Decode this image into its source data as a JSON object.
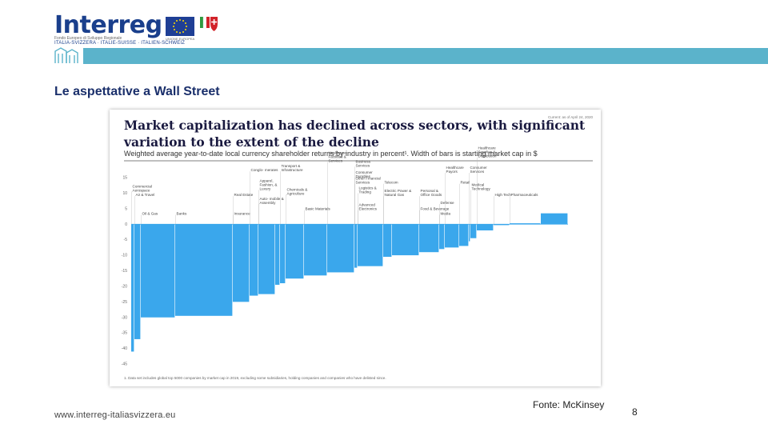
{
  "header": {
    "logo_word": "Interreg",
    "logo_sub1": "Fondo Europeo di Sviluppo Regionale",
    "logo_sub2": "ITALIA-SVIZZERA · ITALIE-SUISSE · ITALIEN-SCHWEIZ",
    "eu_caption": "UNIONE EUROPEA"
  },
  "slide": {
    "heading": "Le aspettative a Wall Street",
    "source": "Fonte: McKinsey",
    "page_number": "8",
    "website": "www.interreg-italiasvizzera.eu"
  },
  "colors": {
    "bar": "#3aa7ec",
    "band": "#5bb3cb",
    "brand_blue": "#1a3f8c",
    "text_dark": "#222222"
  },
  "chart_data": {
    "type": "bar",
    "variable_width": true,
    "title_line1": "Market capitalization has declined across sectors, with significant",
    "title_line2": "variation to the extent of the decline",
    "subtitle": "Weighted average year-to-date local currency shareholder returns by industry in percent¹. Width of bars is starting market cap in $",
    "date_note": "Current: as of April 24, 2020",
    "footnote": "1.   Data set includes global top 5000 companies by market cap in 2019, excluding some subsidiaries, holding companies and companies who have delisted since.",
    "ylim": [
      -45,
      15
    ],
    "yticks": [
      15,
      10,
      5,
      0,
      -5,
      -10,
      -15,
      -20,
      -25,
      -30,
      -35,
      -40,
      -45
    ],
    "series": [
      {
        "values": [
          {
            "value": -41,
            "width": 4
          },
          {
            "value": -37,
            "width": 8
          },
          {
            "value": -30,
            "width": 43
          },
          {
            "value": -29.5,
            "width": 72
          },
          {
            "value": -25,
            "width": 21
          },
          {
            "value": -23,
            "width": 11
          },
          {
            "value": -22.5,
            "width": 21
          },
          {
            "value": -19.5,
            "width": 6
          },
          {
            "value": -19,
            "width": 7
          },
          {
            "value": -17.5,
            "width": 23
          },
          {
            "value": -16.5,
            "width": 29
          },
          {
            "value": -15.5,
            "width": 34
          },
          {
            "value": -14,
            "width": 4
          },
          {
            "value": -13.5,
            "width": 32
          },
          {
            "value": -10.5,
            "width": 11
          },
          {
            "value": -10,
            "width": 34
          },
          {
            "value": -9,
            "width": 25
          },
          {
            "value": -8,
            "width": 7
          },
          {
            "value": -7.5,
            "width": 18
          },
          {
            "value": -7,
            "width": 12
          },
          {
            "value": -5.5,
            "width": 2
          },
          {
            "value": -4.5,
            "width": 8
          },
          {
            "value": -2,
            "width": 21
          },
          {
            "value": -0.3,
            "width": 20
          },
          {
            "value": 0.3,
            "width": 39
          },
          {
            "value": 3.5,
            "width": 34
          }
        ]
      }
    ],
    "category_labels": [
      {
        "text": "Commercial Aerospace",
        "bar": 0,
        "level": 10
      },
      {
        "text": "Air & Travel",
        "bar": 1,
        "level": 8.5
      },
      {
        "text": "Oil & Gas",
        "bar": 2,
        "level": 2.5
      },
      {
        "text": "Banks",
        "bar": 3,
        "level": 2.5
      },
      {
        "text": "Real Estate",
        "bar": 4,
        "level": 8.5
      },
      {
        "text": "Insurance",
        "bar": 4,
        "level": 2.5
      },
      {
        "text": "Conglo- merates",
        "bar": 5,
        "level": 16.5
      },
      {
        "text": "Apparel, Fashion, & Luxury",
        "bar": 6,
        "level": 10.5
      },
      {
        "text": "Auto- mobile & Assembly",
        "bar": 6,
        "level": 6
      },
      {
        "text": "Transport & Infrastructure",
        "bar": 8,
        "level": 16.5
      },
      {
        "text": "Chemicals & Agriculture",
        "bar": 9,
        "level": 9
      },
      {
        "text": "Basic Materials",
        "bar": 10,
        "level": 4
      },
      {
        "text": "Healthcare Facilities & Services",
        "bar": 11,
        "level": 19.5
      },
      {
        "text": "Business Services",
        "bar": 12,
        "level": 18
      },
      {
        "text": "Consumer Durables",
        "bar": 12,
        "level": 14.5
      },
      {
        "text": "Other Financial Services",
        "bar": 12,
        "level": 12.5
      },
      {
        "text": "Logistics & Trading",
        "bar": 13,
        "level": 9.5
      },
      {
        "text": "Advanced Electronics",
        "bar": 13,
        "level": 4
      },
      {
        "text": "Telecom",
        "bar": 14,
        "level": 12.5
      },
      {
        "text": "Electric Power & Natural Gas",
        "bar": 14,
        "level": 8.5
      },
      {
        "text": "Personal & Office Goods",
        "bar": 16,
        "level": 8.5
      },
      {
        "text": "Food & Beverage",
        "bar": 16,
        "level": 4
      },
      {
        "text": "Defense",
        "bar": 17,
        "level": 6
      },
      {
        "text": "Media",
        "bar": 17,
        "level": 2.5
      },
      {
        "text": "Healthcare Payors",
        "bar": 18,
        "level": 16
      },
      {
        "text": "Retail",
        "bar": 19,
        "level": 12.5
      },
      {
        "text": "Consumer Services",
        "bar": 20,
        "level": 16
      },
      {
        "text": "Medical Technology",
        "bar": 21,
        "level": 10.5
      },
      {
        "text": "Healthcare Supplies & Distribution",
        "bar": 22,
        "level": 21
      },
      {
        "text": "High Tech",
        "bar": 23,
        "level": 8.5
      },
      {
        "text": "Pharmaceuticals",
        "bar": 24,
        "level": 8.5
      }
    ]
  }
}
